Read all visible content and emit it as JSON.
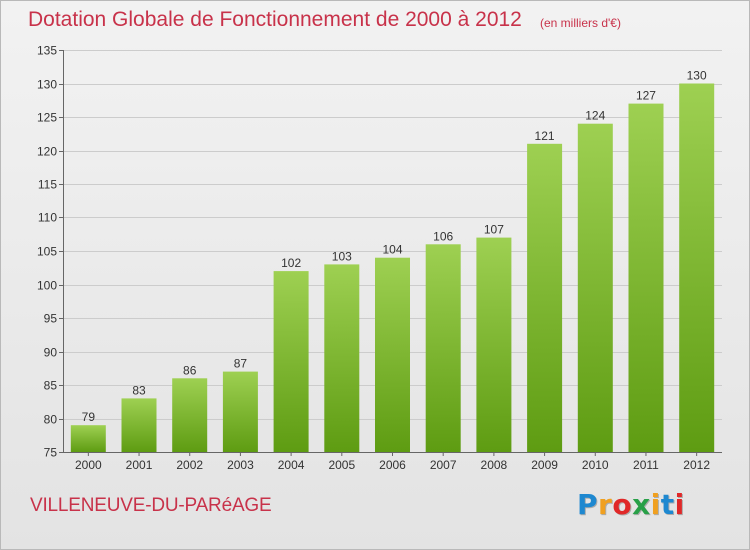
{
  "header": {
    "title": "Dotation Globale de Fonctionnement de 2000 à 2012",
    "unit_note": "(en milliers d'€)"
  },
  "footer": {
    "commune": "VILLENEUVE-DU-PARéAGE",
    "logo_text": "Proxiti",
    "logo_colors": [
      "#1e88d0",
      "#f0a020",
      "#e02828",
      "#28a048",
      "#f0a020",
      "#1e88d0",
      "#e02828"
    ]
  },
  "colors": {
    "bar_top": "#9ed052",
    "bar_bottom": "#5e9c12",
    "text": "#c8324a",
    "axis": "#666666",
    "grid": "#cccccc"
  },
  "chart_data": {
    "type": "bar",
    "categories": [
      "2000",
      "2001",
      "2002",
      "2003",
      "2004",
      "2005",
      "2006",
      "2007",
      "2008",
      "2009",
      "2010",
      "2011",
      "2012"
    ],
    "values": [
      79,
      83,
      86,
      87,
      102,
      103,
      104,
      106,
      107,
      121,
      124,
      127,
      130
    ],
    "ylim": [
      75,
      135
    ],
    "yticks": [
      75,
      80,
      85,
      90,
      95,
      100,
      105,
      110,
      115,
      120,
      125,
      130,
      135
    ],
    "grid": true,
    "data_labels": true
  }
}
